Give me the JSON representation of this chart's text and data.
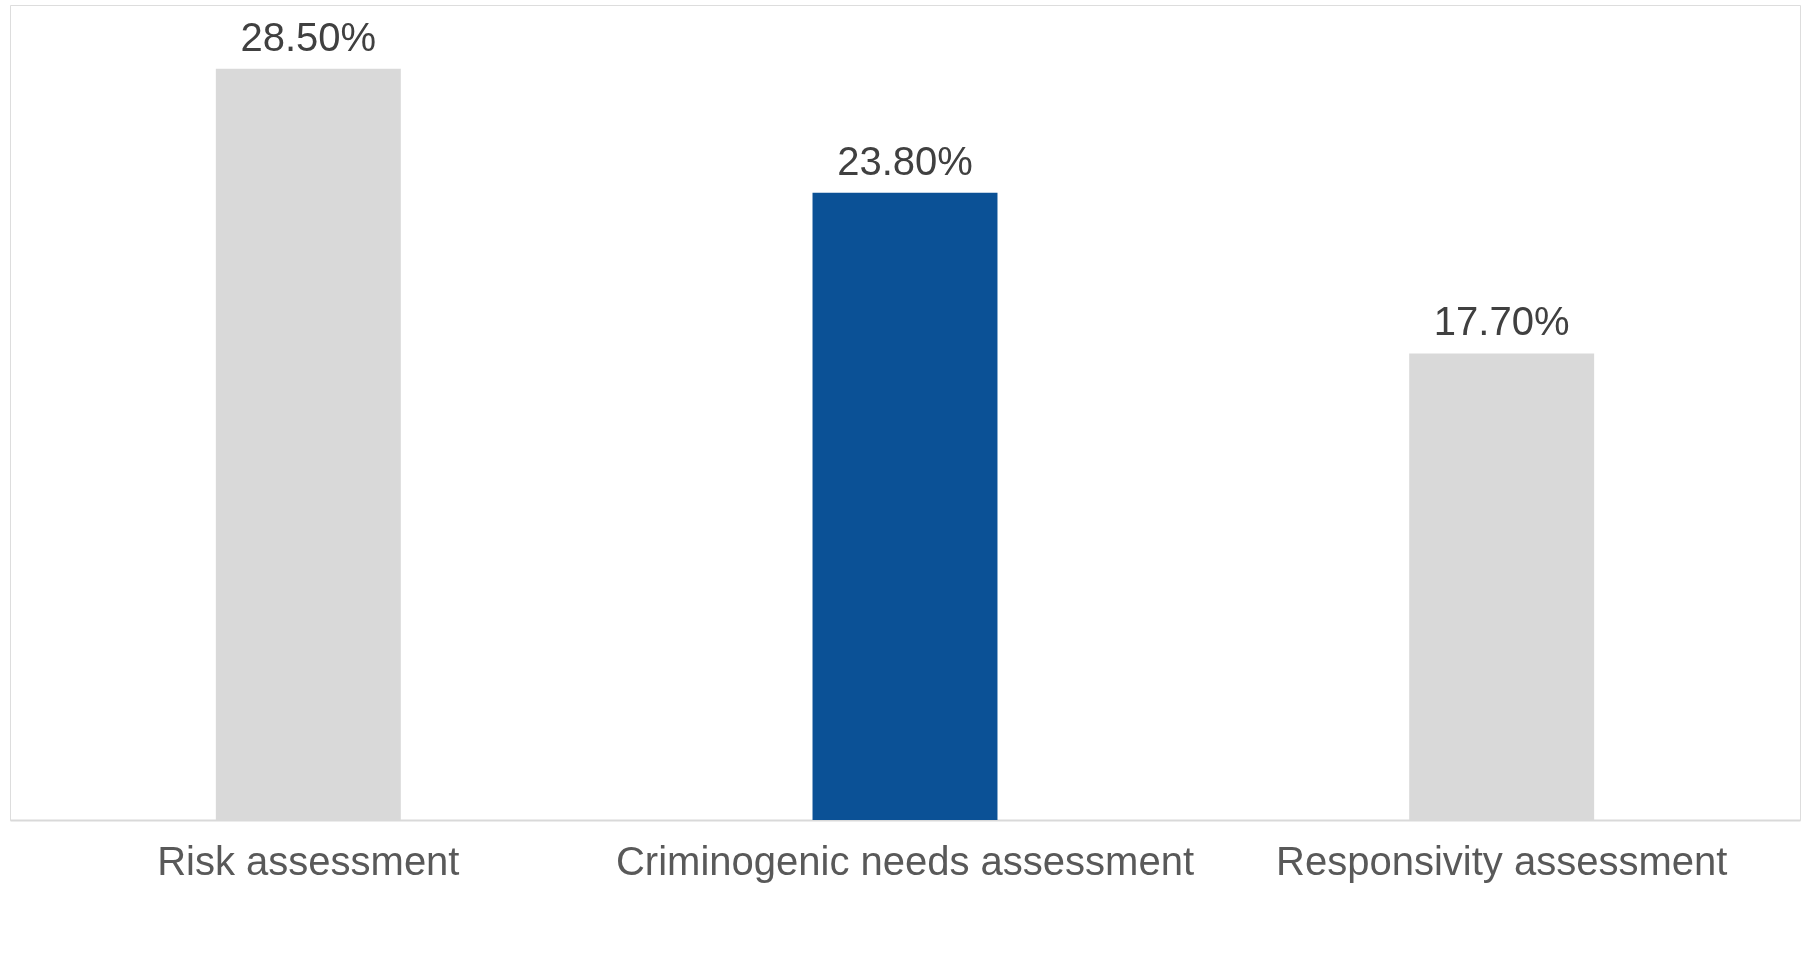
{
  "chart_data": {
    "type": "bar",
    "categories": [
      "Risk assessment",
      "Criminogenic needs assessment",
      "Responsivity assessment"
    ],
    "values": [
      28.5,
      23.8,
      17.7
    ],
    "colors": [
      "#d9d9d9",
      "#0b5196",
      "#d9d9d9"
    ],
    "value_labels": [
      "28.50%",
      "23.80%",
      "17.70%"
    ],
    "grid": false
  }
}
